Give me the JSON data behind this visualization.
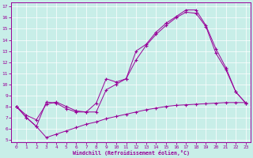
{
  "xlabel": "Windchill (Refroidissement éolien,°C)",
  "bg_color": "#c8eee8",
  "line_color": "#990099",
  "grid_color": "#b0ddd8",
  "xlim": [
    -0.5,
    23.5
  ],
  "ylim": [
    4.8,
    17.4
  ],
  "xticks": [
    0,
    1,
    2,
    3,
    4,
    5,
    6,
    7,
    8,
    9,
    10,
    11,
    12,
    13,
    14,
    15,
    16,
    17,
    18,
    19,
    20,
    21,
    22,
    23
  ],
  "yticks": [
    5,
    6,
    7,
    8,
    9,
    10,
    11,
    12,
    13,
    14,
    15,
    16,
    17
  ],
  "line1_x": [
    0,
    1,
    2,
    3,
    4,
    5,
    6,
    7,
    8,
    9,
    10,
    11,
    12,
    13,
    14,
    15,
    16,
    17,
    18,
    19,
    20,
    21,
    22,
    23
  ],
  "line1_y": [
    8.0,
    7.0,
    6.2,
    5.2,
    5.5,
    5.8,
    6.1,
    6.4,
    6.6,
    6.9,
    7.1,
    7.3,
    7.5,
    7.7,
    7.85,
    8.0,
    8.1,
    8.15,
    8.2,
    8.25,
    8.3,
    8.35,
    8.35,
    8.35
  ],
  "line2_x": [
    0,
    1,
    2,
    3,
    4,
    5,
    6,
    7,
    8,
    9,
    10,
    11,
    12,
    13,
    14,
    15,
    16,
    17,
    18,
    19,
    20,
    21,
    22,
    23
  ],
  "line2_y": [
    8.0,
    7.0,
    6.2,
    8.4,
    8.3,
    7.8,
    7.5,
    7.5,
    8.3,
    10.5,
    10.2,
    10.5,
    13.0,
    13.6,
    14.7,
    15.5,
    16.1,
    16.7,
    16.7,
    15.3,
    13.2,
    11.5,
    9.3,
    8.3
  ],
  "line3_x": [
    0,
    1,
    2,
    3,
    4,
    5,
    6,
    7,
    8,
    9,
    10,
    11,
    12,
    13,
    14,
    15,
    16,
    17,
    18,
    19,
    20,
    21,
    22,
    23
  ],
  "line3_y": [
    8.0,
    7.2,
    6.8,
    8.2,
    8.4,
    8.0,
    7.6,
    7.5,
    7.5,
    9.5,
    10.0,
    10.5,
    12.2,
    13.5,
    14.5,
    15.3,
    16.0,
    16.5,
    16.4,
    15.2,
    12.8,
    11.3,
    9.3,
    8.3
  ]
}
